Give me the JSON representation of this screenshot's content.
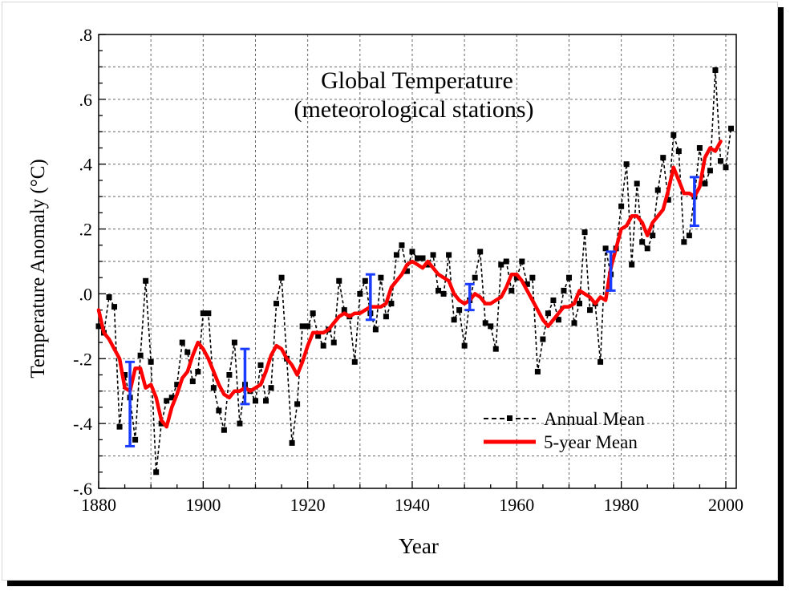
{
  "chart_data": {
    "type": "line",
    "title": "Global Temperature",
    "subtitle": "(meteorological stations)",
    "xlabel": "Year",
    "ylabel": "Temperature Anomaly (°C)",
    "xlim": [
      1880,
      2002
    ],
    "ylim": [
      -0.6,
      0.8
    ],
    "xticks": [
      1880,
      1900,
      1920,
      1940,
      1960,
      1980,
      2000
    ],
    "yticks": [
      -0.6,
      -0.4,
      -0.2,
      0.0,
      0.2,
      0.4,
      0.6,
      0.8
    ],
    "ytick_labels": [
      "-.6",
      "-.4",
      "-.2",
      ".0",
      ".2",
      ".4",
      ".6",
      ".8"
    ],
    "grid": true,
    "legend_position": "bottom-right",
    "colors": {
      "annual": "#000000",
      "five_year": "#ff0000",
      "error_bars": "#1a3cff"
    },
    "series": [
      {
        "name": "Annual Mean",
        "style": "dashed-square-markers",
        "x": [
          1880,
          1881,
          1882,
          1883,
          1884,
          1885,
          1886,
          1887,
          1888,
          1889,
          1890,
          1891,
          1892,
          1893,
          1894,
          1895,
          1896,
          1897,
          1898,
          1899,
          1900,
          1901,
          1902,
          1903,
          1904,
          1905,
          1906,
          1907,
          1908,
          1909,
          1910,
          1911,
          1912,
          1913,
          1914,
          1915,
          1916,
          1917,
          1918,
          1919,
          1920,
          1921,
          1922,
          1923,
          1924,
          1925,
          1926,
          1927,
          1928,
          1929,
          1930,
          1931,
          1932,
          1933,
          1934,
          1935,
          1936,
          1937,
          1938,
          1939,
          1940,
          1941,
          1942,
          1943,
          1944,
          1945,
          1946,
          1947,
          1948,
          1949,
          1950,
          1951,
          1952,
          1953,
          1954,
          1955,
          1956,
          1957,
          1958,
          1959,
          1960,
          1961,
          1962,
          1963,
          1964,
          1965,
          1966,
          1967,
          1968,
          1969,
          1970,
          1971,
          1972,
          1973,
          1974,
          1975,
          1976,
          1977,
          1978,
          1979,
          1980,
          1981,
          1982,
          1983,
          1984,
          1985,
          1986,
          1987,
          1988,
          1989,
          1990,
          1991,
          1992,
          1993,
          1994,
          1995,
          1996,
          1997,
          1998,
          1999,
          2000,
          2001
        ],
        "values": [
          -0.1,
          -0.12,
          -0.01,
          -0.04,
          -0.41,
          -0.25,
          -0.32,
          -0.45,
          -0.19,
          0.04,
          -0.21,
          -0.55,
          -0.4,
          -0.33,
          -0.32,
          -0.28,
          -0.15,
          -0.18,
          -0.27,
          -0.24,
          -0.06,
          -0.06,
          -0.29,
          -0.36,
          -0.42,
          -0.25,
          -0.15,
          -0.4,
          -0.28,
          -0.3,
          -0.33,
          -0.22,
          -0.33,
          -0.29,
          -0.03,
          0.05,
          -0.2,
          -0.46,
          -0.34,
          -0.1,
          -0.1,
          -0.06,
          -0.13,
          -0.16,
          -0.11,
          -0.15,
          0.04,
          -0.05,
          -0.07,
          -0.21,
          0.0,
          0.04,
          -0.06,
          -0.11,
          0.05,
          -0.07,
          -0.03,
          0.12,
          0.15,
          0.07,
          0.13,
          0.11,
          0.11,
          0.09,
          0.12,
          0.01,
          0.0,
          0.12,
          -0.08,
          -0.05,
          -0.16,
          -0.02,
          0.05,
          0.13,
          -0.09,
          -0.1,
          -0.17,
          0.09,
          0.1,
          0.01,
          0.05,
          0.1,
          0.03,
          0.05,
          -0.24,
          -0.14,
          -0.06,
          -0.02,
          -0.08,
          0.01,
          0.05,
          -0.09,
          -0.03,
          0.19,
          -0.05,
          -0.03,
          -0.21,
          0.14,
          0.06,
          0.14,
          0.27,
          0.4,
          0.09,
          0.34,
          0.16,
          0.14,
          0.18,
          0.32,
          0.42,
          0.29,
          0.49,
          0.44,
          0.16,
          0.18,
          0.3,
          0.45,
          0.34,
          0.38,
          0.69,
          0.41,
          0.39,
          0.51
        ]
      },
      {
        "name": "5-year Mean",
        "style": "solid-thick",
        "x": [
          1880,
          1881,
          1882,
          1883,
          1884,
          1885,
          1886,
          1887,
          1888,
          1889,
          1890,
          1891,
          1892,
          1893,
          1894,
          1895,
          1896,
          1897,
          1898,
          1899,
          1900,
          1901,
          1902,
          1903,
          1904,
          1905,
          1906,
          1907,
          1908,
          1909,
          1910,
          1911,
          1912,
          1913,
          1914,
          1915,
          1916,
          1917,
          1918,
          1919,
          1920,
          1921,
          1922,
          1923,
          1924,
          1925,
          1926,
          1927,
          1928,
          1929,
          1930,
          1931,
          1932,
          1933,
          1934,
          1935,
          1936,
          1937,
          1938,
          1939,
          1940,
          1941,
          1942,
          1943,
          1944,
          1945,
          1946,
          1947,
          1948,
          1949,
          1950,
          1951,
          1952,
          1953,
          1954,
          1955,
          1956,
          1957,
          1958,
          1959,
          1960,
          1961,
          1962,
          1963,
          1964,
          1965,
          1966,
          1967,
          1968,
          1969,
          1970,
          1971,
          1972,
          1973,
          1974,
          1975,
          1976,
          1977,
          1978,
          1979,
          1980,
          1981,
          1982,
          1983,
          1984,
          1985,
          1986,
          1987,
          1988,
          1989,
          1990,
          1991,
          1992,
          1993,
          1994,
          1995,
          1996,
          1997,
          1998,
          1999
        ],
        "values": [
          -0.05,
          -0.12,
          -0.14,
          -0.17,
          -0.2,
          -0.29,
          -0.3,
          -0.23,
          -0.23,
          -0.29,
          -0.28,
          -0.32,
          -0.39,
          -0.41,
          -0.35,
          -0.31,
          -0.26,
          -0.24,
          -0.19,
          -0.15,
          -0.17,
          -0.2,
          -0.24,
          -0.28,
          -0.31,
          -0.32,
          -0.3,
          -0.3,
          -0.29,
          -0.3,
          -0.29,
          -0.28,
          -0.24,
          -0.19,
          -0.16,
          -0.17,
          -0.2,
          -0.22,
          -0.25,
          -0.21,
          -0.16,
          -0.12,
          -0.12,
          -0.12,
          -0.11,
          -0.09,
          -0.07,
          -0.06,
          -0.07,
          -0.06,
          -0.06,
          -0.05,
          -0.04,
          -0.04,
          -0.04,
          -0.03,
          0.02,
          0.04,
          0.06,
          0.09,
          0.1,
          0.09,
          0.08,
          0.1,
          0.08,
          0.06,
          0.05,
          0.04,
          0.0,
          -0.02,
          -0.03,
          -0.02,
          0.0,
          -0.01,
          -0.03,
          -0.03,
          -0.02,
          -0.01,
          0.02,
          0.06,
          0.06,
          0.04,
          0.01,
          -0.02,
          -0.05,
          -0.08,
          -0.1,
          -0.08,
          -0.06,
          -0.04,
          -0.04,
          -0.03,
          0.01,
          0.0,
          -0.01,
          -0.03,
          -0.01,
          -0.02,
          0.08,
          0.14,
          0.2,
          0.21,
          0.24,
          0.24,
          0.22,
          0.18,
          0.22,
          0.24,
          0.26,
          0.32,
          0.39,
          0.35,
          0.31,
          0.31,
          0.3,
          0.33,
          0.42,
          0.45,
          0.44,
          0.47
        ]
      }
    ],
    "error_bars": [
      {
        "x": 1886,
        "low": -0.47,
        "high": -0.21
      },
      {
        "x": 1908,
        "low": -0.34,
        "high": -0.17
      },
      {
        "x": 1932,
        "low": -0.08,
        "high": 0.06
      },
      {
        "x": 1951,
        "low": -0.05,
        "high": 0.03
      },
      {
        "x": 1978,
        "low": 0.01,
        "high": 0.13
      },
      {
        "x": 1994,
        "low": 0.21,
        "high": 0.36
      }
    ]
  }
}
